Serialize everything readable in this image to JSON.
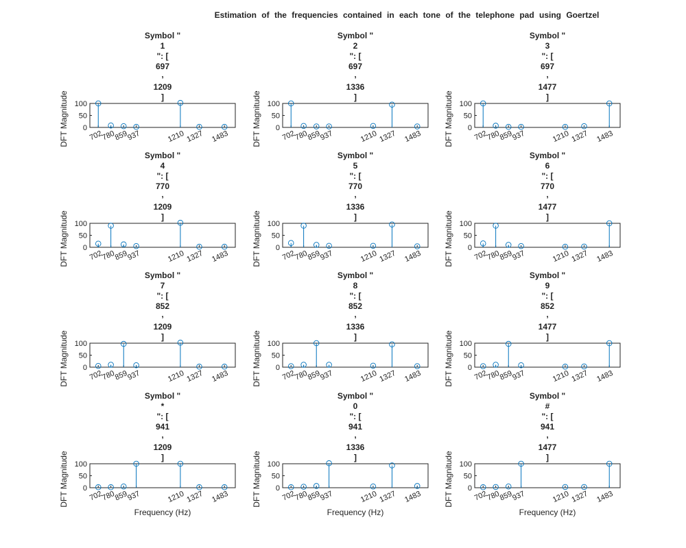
{
  "chart_data": {
    "type": "stem",
    "title": "Estimation of the frequencies contained in each tone of the telephone pad using Goertzel",
    "xlabel": "Frequency (Hz)",
    "ylabel": "DFT Magnitude",
    "xticks": [
      702,
      780,
      859,
      937,
      1210,
      1327,
      1483
    ],
    "xlim": [
      650,
      1550
    ],
    "ylim": [
      0,
      100
    ],
    "yticks": [
      0,
      50,
      100
    ],
    "color": "#0072BD",
    "subplots": [
      {
        "symbol": "1",
        "low": "697",
        "high": "1209",
        "values": [
          100,
          8,
          5,
          2,
          102,
          2,
          2
        ]
      },
      {
        "symbol": "2",
        "low": "697",
        "high": "1336",
        "values": [
          100,
          6,
          4,
          4,
          6,
          95,
          4
        ]
      },
      {
        "symbol": "3",
        "low": "697",
        "high": "1477",
        "values": [
          100,
          7,
          2,
          2,
          2,
          5,
          100
        ]
      },
      {
        "symbol": "4",
        "low": "770",
        "high": "1209",
        "values": [
          15,
          90,
          12,
          5,
          102,
          2,
          2
        ]
      },
      {
        "symbol": "5",
        "low": "770",
        "high": "1336",
        "values": [
          18,
          90,
          10,
          6,
          6,
          95,
          4
        ]
      },
      {
        "symbol": "6",
        "low": "770",
        "high": "1477",
        "values": [
          16,
          90,
          10,
          5,
          2,
          3,
          100
        ]
      },
      {
        "symbol": "7",
        "low": "852",
        "high": "1209",
        "values": [
          5,
          10,
          97,
          8,
          102,
          2,
          2
        ]
      },
      {
        "symbol": "8",
        "low": "852",
        "high": "1336",
        "values": [
          4,
          10,
          100,
          10,
          6,
          95,
          4
        ]
      },
      {
        "symbol": "9",
        "low": "852",
        "high": "1477",
        "values": [
          4,
          10,
          97,
          8,
          2,
          3,
          100
        ]
      },
      {
        "symbol": "*",
        "low": "941",
        "high": "1209",
        "values": [
          2,
          2,
          5,
          100,
          100,
          2,
          2
        ]
      },
      {
        "symbol": "0",
        "low": "941",
        "high": "1336",
        "values": [
          2,
          4,
          7,
          102,
          5,
          93,
          7
        ]
      },
      {
        "symbol": "#",
        "low": "941",
        "high": "1477",
        "values": [
          2,
          3,
          5,
          100,
          3,
          3,
          100
        ]
      }
    ]
  }
}
